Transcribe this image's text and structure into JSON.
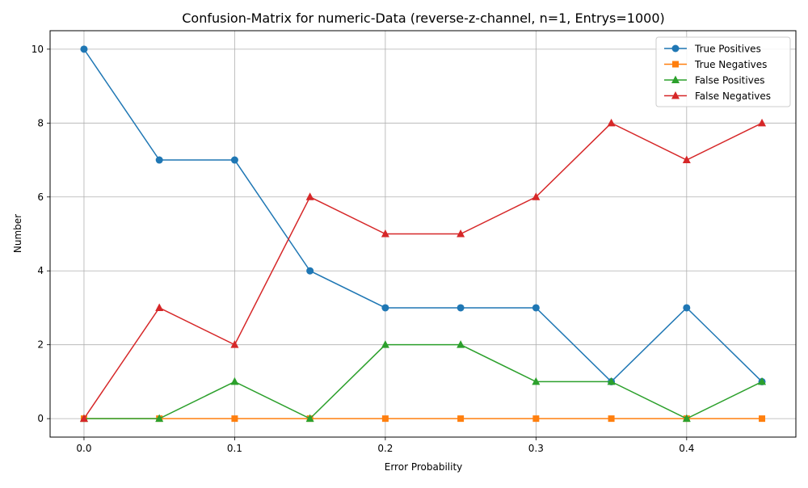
{
  "chart_data": {
    "type": "line",
    "title": "Confusion-Matrix for numeric-Data (reverse-z-channel, n=1, Entrys=1000)",
    "xlabel": "Error Probability",
    "ylabel": "Number",
    "x": [
      0.0,
      0.05,
      0.1,
      0.15,
      0.2,
      0.25,
      0.3,
      0.35,
      0.4,
      0.45
    ],
    "xlim": [
      -0.0225,
      0.4725
    ],
    "ylim": [
      -0.5,
      10.5
    ],
    "xticks": [
      0.0,
      0.1,
      0.2,
      0.3,
      0.4
    ],
    "xtick_labels": [
      "0.0",
      "0.1",
      "0.2",
      "0.3",
      "0.4"
    ],
    "yticks": [
      0,
      2,
      4,
      6,
      8,
      10
    ],
    "ytick_labels": [
      "0",
      "2",
      "4",
      "6",
      "8",
      "10"
    ],
    "grid": true,
    "legend_position": "top-right",
    "series": [
      {
        "name": "True Positives",
        "color": "#1f77b4",
        "marker": "circle",
        "values": [
          10,
          7,
          7,
          4,
          3,
          3,
          3,
          1,
          3,
          1
        ]
      },
      {
        "name": "True Negatives",
        "color": "#ff7f0e",
        "marker": "square",
        "values": [
          0,
          0,
          0,
          0,
          0,
          0,
          0,
          0,
          0,
          0
        ]
      },
      {
        "name": "False Positives",
        "color": "#2ca02c",
        "marker": "triangle",
        "values": [
          0,
          0,
          1,
          0,
          2,
          2,
          1,
          1,
          0,
          1
        ]
      },
      {
        "name": "False Negatives",
        "color": "#d62728",
        "marker": "triangle",
        "values": [
          0,
          3,
          2,
          6,
          5,
          5,
          6,
          8,
          7,
          8
        ]
      }
    ]
  }
}
